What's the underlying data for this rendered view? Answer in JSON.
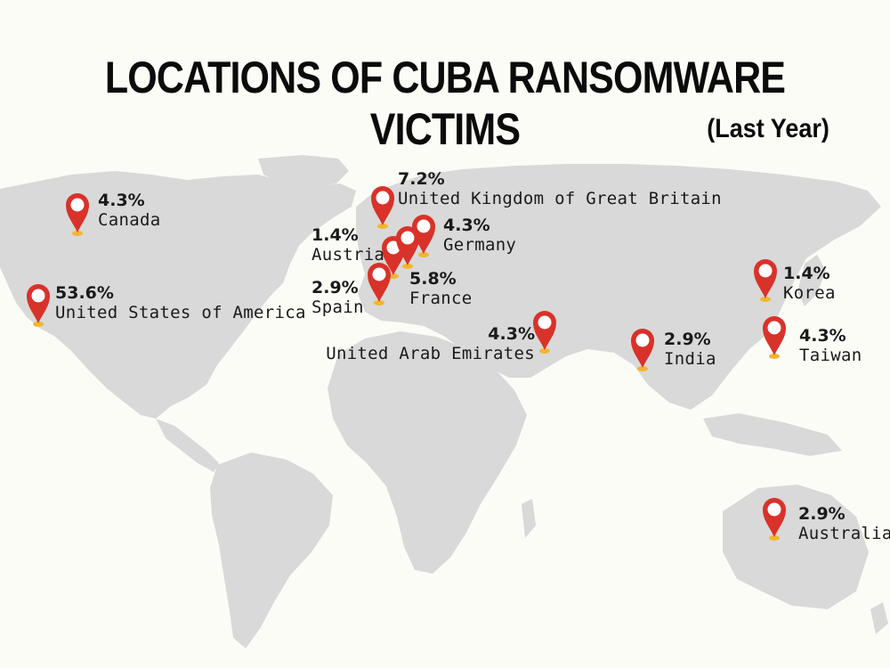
{
  "title": "LOCATIONS OF CUBA RANSOMWARE VICTIMS",
  "subtitle": "(Last Year)",
  "colors": {
    "land": "#d9d9d9",
    "pin": "#d9322a",
    "pin_base": "#f2b632",
    "background": "#fcfcf7",
    "text": "#111111"
  },
  "locations": [
    {
      "country": "Canada",
      "percent": "4.3%"
    },
    {
      "country": "United States of America",
      "percent": "53.6%"
    },
    {
      "country": "United Kingdom of Great Britain",
      "percent": "7.2%"
    },
    {
      "country": "Germany",
      "percent": "4.3%"
    },
    {
      "country": "Austria",
      "percent": "1.4%"
    },
    {
      "country": "France",
      "percent": "5.8%"
    },
    {
      "country": "Spain",
      "percent": "2.9%"
    },
    {
      "country": "United Arab Emirates",
      "percent": "4.3%"
    },
    {
      "country": "India",
      "percent": "2.9%"
    },
    {
      "country": "Korea",
      "percent": "1.4%"
    },
    {
      "country": "Taiwan",
      "percent": "4.3%"
    },
    {
      "country": "Australia",
      "percent": "2.9%"
    }
  ]
}
